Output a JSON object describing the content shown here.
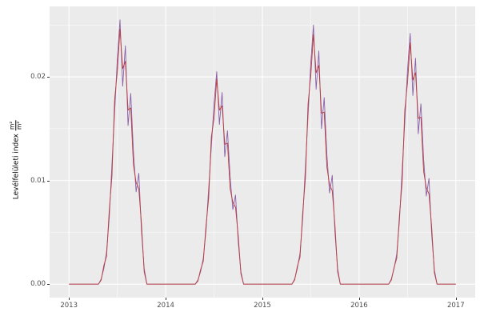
{
  "figure": {
    "background": "#FFFFFF",
    "panel_background": "#EBEBEB",
    "grid_major_color": "#FFFFFF",
    "grid_minor_color": "#F5F5F5",
    "tick_text_color": "#4D4D4D",
    "series_purple_color": "#8B5FA8",
    "series_red_color": "#BB3B3B"
  },
  "y_axis": {
    "title": "Levélfelületi index",
    "fraction_numerator": "m²",
    "fraction_denominator": "m²",
    "tick_labels": [
      "0.00",
      "0.01",
      "0.02"
    ],
    "tick_values": [
      0,
      0.01,
      0.02
    ]
  },
  "x_axis": {
    "tick_labels": [
      "2013",
      "2014",
      "2015",
      "2016",
      "2017"
    ],
    "tick_values": [
      2013,
      2014,
      2015,
      2016,
      2017
    ]
  },
  "chart_data": {
    "type": "line",
    "title": "",
    "xlabel": "",
    "ylabel": "Levélfelületi index m²/m²",
    "legend": "none",
    "grid": true,
    "xlim": [
      2012.8,
      2017.2
    ],
    "ylim": [
      -0.0013,
      0.0268
    ],
    "x_ticks": [
      2013,
      2014,
      2015,
      2016,
      2017
    ],
    "y_ticks": [
      0,
      0.01,
      0.02
    ],
    "x_minor": [
      2013.5,
      2014.5,
      2015.5,
      2016.5
    ],
    "y_minor": [
      0.005,
      0.015,
      0.025
    ],
    "x0": 2013,
    "dx": 0.0277778,
    "n": 145,
    "series": [
      {
        "name": "lai-series-purple",
        "color": "#8B5FA8",
        "y": [
          0,
          0,
          0,
          0,
          0,
          0,
          0,
          0,
          0,
          0,
          0,
          0,
          0.0005,
          0.0015,
          0.0031,
          0.0064,
          0.0115,
          0.0166,
          0.0217,
          0.0255,
          0.0191,
          0.023,
          0.0153,
          0.0184,
          0.0128,
          0.0089,
          0.0107,
          0.0051,
          0.0015,
          0,
          0,
          0,
          0,
          0,
          0,
          0,
          0,
          0,
          0,
          0,
          0,
          0,
          0,
          0,
          0,
          0,
          0,
          0,
          0.0004,
          0.0012,
          0.0025,
          0.0051,
          0.0092,
          0.0133,
          0.0174,
          0.0205,
          0.0154,
          0.0185,
          0.0123,
          0.0148,
          0.0103,
          0.0072,
          0.0086,
          0.0041,
          0.0012,
          0,
          0,
          0,
          0,
          0,
          0,
          0,
          0,
          0,
          0,
          0,
          0,
          0,
          0,
          0,
          0,
          0,
          0,
          0,
          0.0005,
          0.0015,
          0.003,
          0.0063,
          0.0113,
          0.0163,
          0.0213,
          0.025,
          0.0188,
          0.0225,
          0.015,
          0.018,
          0.0125,
          0.0088,
          0.0105,
          0.005,
          0.0015,
          0,
          0,
          0,
          0,
          0,
          0,
          0,
          0,
          0,
          0,
          0,
          0,
          0,
          0,
          0,
          0,
          0,
          0,
          0,
          0.0005,
          0.0015,
          0.0029,
          0.0061,
          0.0109,
          0.0157,
          0.0206,
          0.0242,
          0.0182,
          0.0218,
          0.0145,
          0.0174,
          0.0121,
          0.0085,
          0.0102,
          0.0048,
          0.0014,
          0,
          0,
          0,
          0,
          0,
          0,
          0,
          0
        ]
      },
      {
        "name": "lai-series-red",
        "color": "#BB3B3B",
        "y": [
          0,
          0,
          0,
          0,
          0,
          0,
          0,
          0,
          0,
          0,
          0,
          0,
          0.0004,
          0.0018,
          0.0027,
          0.0071,
          0.0104,
          0.0178,
          0.0205,
          0.0246,
          0.0208,
          0.0215,
          0.0168,
          0.017,
          0.0115,
          0.0098,
          0.0092,
          0.0058,
          0.0012,
          0,
          0,
          0,
          0,
          0,
          0,
          0,
          0,
          0,
          0,
          0,
          0,
          0,
          0,
          0,
          0,
          0,
          0,
          0,
          0.0003,
          0.0014,
          0.0022,
          0.0056,
          0.0083,
          0.0142,
          0.016,
          0.0198,
          0.0168,
          0.0172,
          0.0135,
          0.0136,
          0.0092,
          0.0079,
          0.0074,
          0.0047,
          0.001,
          0,
          0,
          0,
          0,
          0,
          0,
          0,
          0,
          0,
          0,
          0,
          0,
          0,
          0,
          0,
          0,
          0,
          0,
          0,
          0.0004,
          0.0017,
          0.0026,
          0.0069,
          0.0102,
          0.0174,
          0.0201,
          0.0241,
          0.0204,
          0.0211,
          0.0165,
          0.0166,
          0.0113,
          0.0096,
          0.009,
          0.0057,
          0.0012,
          0,
          0,
          0,
          0,
          0,
          0,
          0,
          0,
          0,
          0,
          0,
          0,
          0,
          0,
          0,
          0,
          0,
          0,
          0,
          0.0004,
          0.0016,
          0.0025,
          0.0066,
          0.0098,
          0.0168,
          0.0194,
          0.0233,
          0.0197,
          0.0204,
          0.016,
          0.0161,
          0.0109,
          0.0093,
          0.0087,
          0.0055,
          0.0011,
          0,
          0,
          0,
          0,
          0,
          0,
          0,
          0
        ]
      }
    ]
  }
}
